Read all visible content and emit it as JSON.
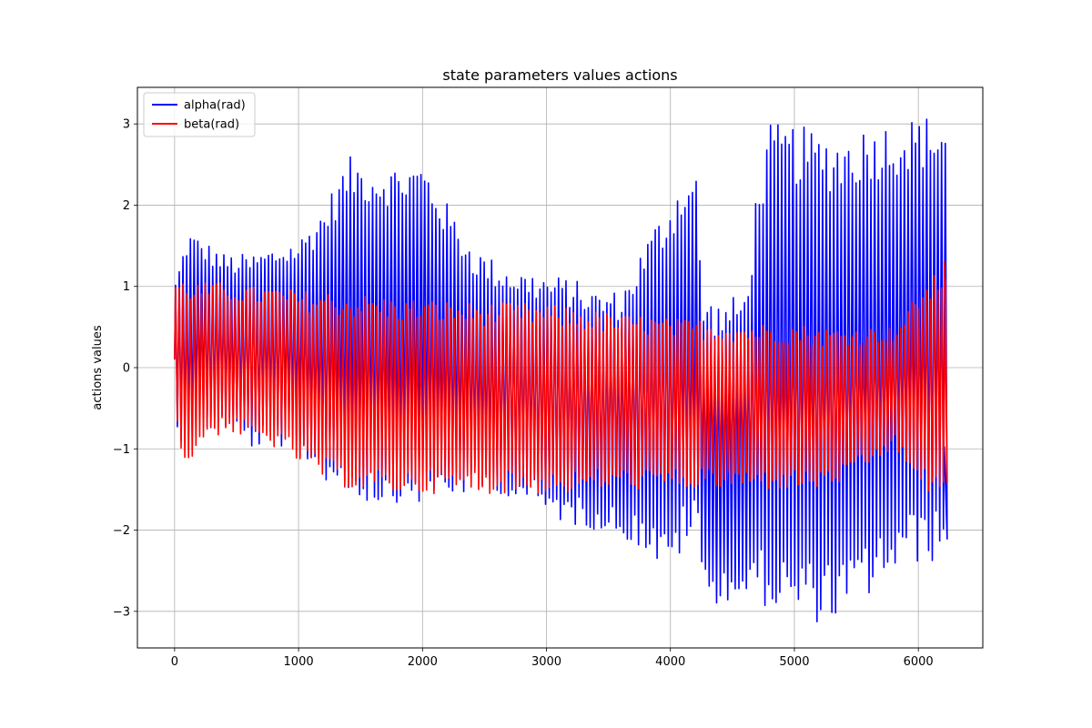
{
  "chart_data": {
    "type": "line",
    "title": "state parameters values actions",
    "xlabel": "",
    "ylabel": "actions values",
    "xlim": [
      -300,
      6520
    ],
    "ylim": [
      -3.45,
      3.45
    ],
    "xticks": [
      0,
      1000,
      2000,
      3000,
      4000,
      5000,
      6000
    ],
    "xtick_labels": [
      "0",
      "1000",
      "2000",
      "3000",
      "4000",
      "5000",
      "6000"
    ],
    "yticks": [
      -3,
      -2,
      -1,
      0,
      1,
      2,
      3
    ],
    "ytick_labels": [
      "−3",
      "−2",
      "−1",
      "0",
      "1",
      "2",
      "3"
    ],
    "grid": true,
    "legend_position": "upper-left",
    "series": [
      {
        "name": "alpha(rad)",
        "color": "#0000ff",
        "oscillation_period": 30,
        "x_range": [
          0,
          6210
        ],
        "envelope_x": [
          0,
          100,
          200,
          400,
          600,
          800,
          1000,
          1200,
          1400,
          1600,
          1800,
          2000,
          2200,
          2400,
          2600,
          2800,
          3000,
          3200,
          3400,
          3600,
          3800,
          3950,
          4100,
          4200,
          4250,
          4400,
          4600,
          4700,
          4800,
          5000,
          5200,
          5400,
          5600,
          5800,
          6000,
          6100,
          6200
        ],
        "envelope_upper": [
          1.1,
          1.7,
          1.6,
          1.4,
          1.4,
          1.5,
          1.6,
          2.0,
          2.6,
          2.5,
          2.5,
          2.55,
          2.0,
          1.5,
          1.3,
          1.2,
          1.15,
          1.1,
          0.95,
          0.95,
          1.6,
          2.0,
          2.4,
          2.4,
          0.9,
          0.8,
          0.95,
          2.4,
          3.0,
          3.0,
          2.9,
          2.9,
          3.0,
          3.05,
          3.1,
          3.12,
          3.12
        ],
        "envelope_lower": [
          -0.9,
          -0.9,
          -0.8,
          -0.75,
          -1.0,
          -0.95,
          -1.1,
          -1.4,
          -1.6,
          -1.7,
          -1.65,
          -1.7,
          -1.6,
          -1.55,
          -1.55,
          -1.65,
          -1.85,
          -1.95,
          -2.0,
          -2.1,
          -2.3,
          -2.6,
          -2.2,
          -2.1,
          -2.9,
          -2.9,
          -2.85,
          -2.9,
          -3.0,
          -3.1,
          -3.15,
          -3.1,
          -2.8,
          -2.55,
          -2.4,
          -2.4,
          -2.35
        ],
        "final_value": -0.97
      },
      {
        "name": "beta(rad)",
        "color": "#ff0000",
        "oscillation_period": 30,
        "x_range": [
          0,
          6210
        ],
        "envelope_x": [
          0,
          100,
          200,
          400,
          600,
          800,
          1000,
          1200,
          1400,
          1600,
          1800,
          2000,
          2400,
          2800,
          3200,
          3400,
          3600,
          3800,
          4000,
          4200,
          4400,
          4600,
          4800,
          5000,
          5200,
          5400,
          5600,
          5800,
          5900,
          6000,
          6100,
          6200
        ],
        "envelope_upper": [
          1.1,
          1.1,
          1.05,
          1.05,
          1.0,
          1.0,
          0.95,
          0.95,
          0.9,
          0.9,
          0.85,
          0.85,
          0.8,
          0.8,
          0.75,
          0.7,
          0.65,
          0.65,
          0.6,
          0.6,
          0.58,
          0.55,
          0.55,
          0.55,
          0.5,
          0.5,
          0.5,
          0.5,
          0.7,
          1.0,
          1.1,
          1.3
        ],
        "envelope_lower": [
          -0.9,
          -1.3,
          -0.9,
          -0.8,
          -0.9,
          -1.0,
          -1.2,
          -1.4,
          -1.5,
          -1.55,
          -1.55,
          -1.55,
          -1.55,
          -1.55,
          -1.55,
          -1.5,
          -1.5,
          -1.5,
          -1.5,
          -1.5,
          -1.5,
          -1.5,
          -1.5,
          -1.5,
          -1.5,
          -1.4,
          -1.2,
          -1.0,
          -1.3,
          -1.55,
          -1.55,
          -1.55
        ],
        "final_value": 1.3
      }
    ]
  }
}
